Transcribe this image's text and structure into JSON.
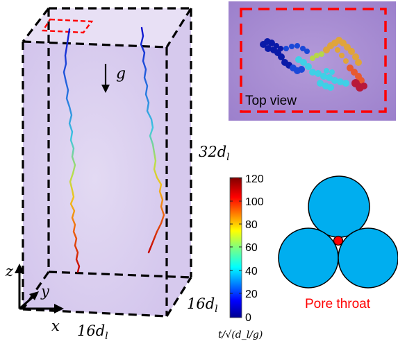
{
  "main_panel": {
    "gravity_symbol": "g",
    "height_label": "32d",
    "height_sub": "l",
    "depth_label": "16d",
    "depth_sub": "l",
    "width_label": "16d",
    "width_sub": "l",
    "axis_x": "x",
    "axis_y": "y",
    "axis_z": "z",
    "box_face_color": "#d9cdee",
    "box_edge_color": "#000000"
  },
  "inset_top_view": {
    "label": "Top view",
    "background_color": "#a48ad1",
    "border_color": "#ff0000"
  },
  "colorbar": {
    "ticks": [
      "120",
      "100",
      "80",
      "60",
      "40",
      "20",
      "0"
    ],
    "axis_label": "t/√(d_l/g)",
    "colormap": "jet"
  },
  "pore_throat": {
    "label": "Pore throat",
    "sphere_color": "#00aeef",
    "throat_color": "#ff0000",
    "label_color": "#ff0000"
  }
}
